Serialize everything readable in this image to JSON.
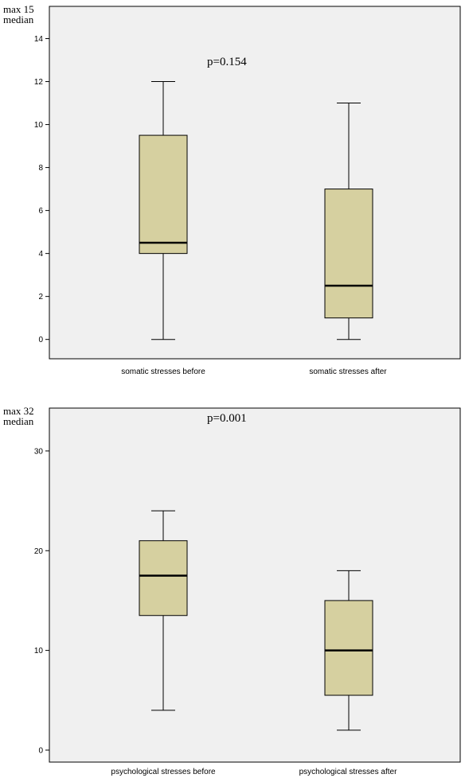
{
  "chart_data": [
    {
      "type": "boxplot",
      "ylabel_lines": [
        "max 15",
        "median"
      ],
      "annotation": "p=0.154",
      "categories": [
        "somatic stresses before",
        "somatic stresses after"
      ],
      "boxes": [
        {
          "min": 0,
          "q1": 4,
          "median": 4.5,
          "q3": 9.5,
          "max": 12
        },
        {
          "min": 0,
          "q1": 1,
          "median": 2.5,
          "q3": 7,
          "max": 11
        }
      ],
      "yticks": [
        0,
        2,
        4,
        6,
        8,
        10,
        12,
        14
      ],
      "ylim": [
        -0.9,
        15.5
      ],
      "grid": false,
      "colors": {
        "box": "#d6d0a0",
        "background": "#f0f0f0",
        "line": "#000000"
      }
    },
    {
      "type": "boxplot",
      "ylabel_lines": [
        "max 32",
        "median"
      ],
      "annotation": "p=0.001",
      "categories": [
        "psychological stresses before",
        "psychological stresses after"
      ],
      "boxes": [
        {
          "min": 4,
          "q1": 13.5,
          "median": 17.5,
          "q3": 21,
          "max": 24
        },
        {
          "min": 2,
          "q1": 5.5,
          "median": 10,
          "q3": 15,
          "max": 18
        }
      ],
      "yticks": [
        0,
        10,
        20,
        30
      ],
      "ylim": [
        -1.2,
        34.3
      ],
      "grid": false,
      "colors": {
        "box": "#d6d0a0",
        "background": "#f0f0f0",
        "line": "#000000"
      }
    }
  ]
}
